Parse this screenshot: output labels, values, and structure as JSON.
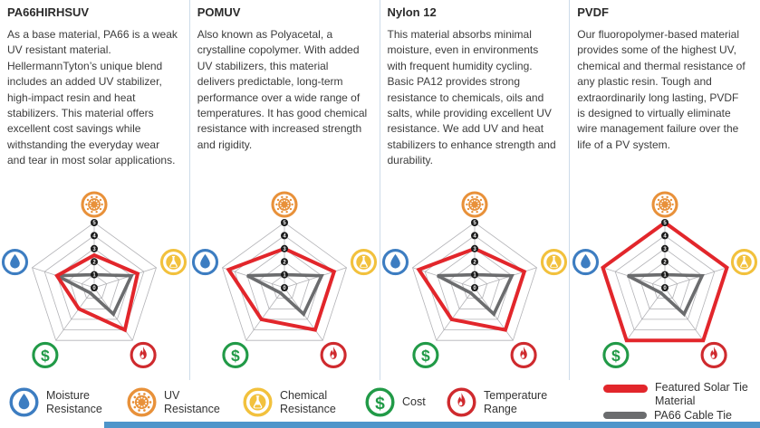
{
  "palette": {
    "featured_red": "#e2262b",
    "pa66_gray": "#6b6c6e",
    "uv_orange": "#e8913a",
    "chemical_yellow": "#f2c13d",
    "temperature_red": "#cf2a2e",
    "cost_green": "#219a47",
    "moisture_blue": "#3d7dc1",
    "grid_gray": "#b2b2b6",
    "divider_blue": "#cddbe9",
    "bottom_bar_blue": "#4e95ca",
    "tick_badge_black": "#191919"
  },
  "columns": [
    {
      "title": "PA66HIRHSUV",
      "body": "As a base material, PA66 is a weak UV resistant material. HellermannTyton’s unique blend includes an added UV stabilizer, high-impact resin and heat stabilizers. This material offers excellent cost savings while withstanding the everyday wear and tear in most solar applications."
    },
    {
      "title": "POMUV",
      "body": "Also known as Polyacetal, a crystalline copolymer. With added UV stabilizers, this material delivers predictable, long-term performance over a wide range of temperatures. It has good chemical resistance with increased strength and rigidity."
    },
    {
      "title": "Nylon 12",
      "body": "This material absorbs minimal moisture, even in environments with frequent humidity cycling. Basic PA12 provides strong resistance to chemicals, oils and salts, while providing excellent UV resistance. We add UV and heat stabilizers to enhance strength and durability."
    },
    {
      "title": "PVDF",
      "body": "Our fluoropolymer-based material provides some of the highest UV, chemical and thermal resistance of any plastic resin. Tough and extraordinarily long lasting, PVDF is designed to virtually eliminate wire management failure over the life of a PV system."
    }
  ],
  "chart_data": [
    {
      "type": "radar",
      "title": "PA66HIRHSUV vs PA66 Cable Tie",
      "categories": [
        "UV Resistance",
        "Chemical Resistance",
        "Temperature Range",
        "Cost",
        "Moisture Resistance"
      ],
      "axis_icons": [
        "uv-icon",
        "chemical-icon",
        "temperature-icon",
        "cost-icon",
        "moisture-icon"
      ],
      "axis_range": [
        0,
        5
      ],
      "tick_labels": [
        "0",
        "1",
        "2",
        "3",
        "4",
        "5"
      ],
      "grid": true,
      "series": [
        {
          "name": "Featured Solar Tie Material",
          "color": "#e2262b",
          "values": [
            2.5,
            3.5,
            4,
            2,
            3
          ]
        },
        {
          "name": "PA66 Cable Tie",
          "color": "#6b6c6e",
          "values": [
            1,
            3,
            2.5,
            0.5,
            3
          ]
        }
      ]
    },
    {
      "type": "radar",
      "title": "POMUV vs PA66 Cable Tie",
      "categories": [
        "UV Resistance",
        "Chemical Resistance",
        "Temperature Range",
        "Cost",
        "Moisture Resistance"
      ],
      "axis_icons": [
        "uv-icon",
        "chemical-icon",
        "temperature-icon",
        "cost-icon",
        "moisture-icon"
      ],
      "axis_range": [
        0,
        5
      ],
      "tick_labels": [
        "0",
        "1",
        "2",
        "3",
        "4",
        "5"
      ],
      "grid": true,
      "series": [
        {
          "name": "Featured Solar Tie Material",
          "color": "#e2262b",
          "values": [
            3,
            4,
            4,
            3,
            4.5
          ]
        },
        {
          "name": "PA66 Cable Tie",
          "color": "#6b6c6e",
          "values": [
            1,
            3,
            2.5,
            0.5,
            3
          ]
        }
      ]
    },
    {
      "type": "radar",
      "title": "Nylon 12 vs PA66 Cable Tie",
      "categories": [
        "UV Resistance",
        "Chemical Resistance",
        "Temperature Range",
        "Cost",
        "Moisture Resistance"
      ],
      "axis_icons": [
        "uv-icon",
        "chemical-icon",
        "temperature-icon",
        "cost-icon",
        "moisture-icon"
      ],
      "axis_range": [
        0,
        5
      ],
      "tick_labels": [
        "0",
        "1",
        "2",
        "3",
        "4",
        "5"
      ],
      "grid": true,
      "series": [
        {
          "name": "Featured Solar Tie Material",
          "color": "#e2262b",
          "values": [
            3,
            4,
            4,
            3,
            4.5
          ]
        },
        {
          "name": "PA66 Cable Tie",
          "color": "#6b6c6e",
          "values": [
            1,
            3,
            2.5,
            0.5,
            3
          ]
        }
      ]
    },
    {
      "type": "radar",
      "title": "PVDF vs PA66 Cable Tie",
      "categories": [
        "UV Resistance",
        "Chemical Resistance",
        "Temperature Range",
        "Cost",
        "Moisture Resistance"
      ],
      "axis_icons": [
        "uv-icon",
        "chemical-icon",
        "temperature-icon",
        "cost-icon",
        "moisture-icon"
      ],
      "axis_range": [
        0,
        5
      ],
      "tick_labels": [
        "0",
        "1",
        "2",
        "3",
        "4",
        "5"
      ],
      "grid": true,
      "series": [
        {
          "name": "Featured Solar Tie Material",
          "color": "#e2262b",
          "values": [
            5,
            5,
            5,
            5,
            5
          ]
        },
        {
          "name": "PA66 Cable Tie",
          "color": "#6b6c6e",
          "values": [
            1,
            3,
            2.5,
            0.5,
            3
          ]
        }
      ]
    }
  ],
  "legend": {
    "items": [
      {
        "icon": "moisture",
        "label": "Moisture\nResistance"
      },
      {
        "icon": "uv",
        "label": "UV\nResistance"
      },
      {
        "icon": "chemical",
        "label": "Chemical\nResistance"
      },
      {
        "icon": "cost",
        "label": "Cost"
      },
      {
        "icon": "temperature",
        "label": "Temperature\nRange"
      }
    ],
    "series": [
      {
        "swatch": "red-line",
        "color": "#e2262b",
        "label": "Featured Solar Tie\nMaterial"
      },
      {
        "swatch": "gray-line",
        "color": "#6b6c6e",
        "label": "PA66 Cable Tie"
      }
    ]
  }
}
